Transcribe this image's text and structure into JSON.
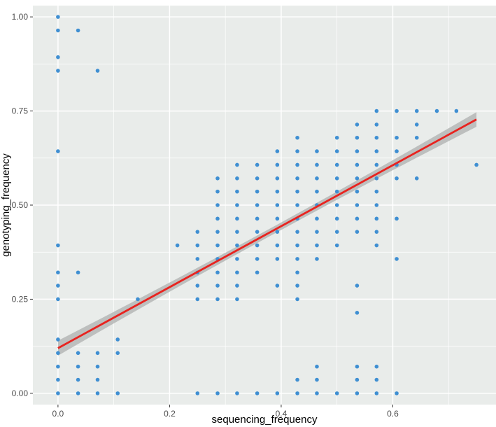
{
  "chart_data": {
    "type": "scatter",
    "xlabel": "sequencing_frequency",
    "ylabel": "genotyping_frequency",
    "xlim": [
      -0.045,
      0.785
    ],
    "ylim": [
      -0.03,
      1.03
    ],
    "xticks": [
      0.0,
      0.2,
      0.4,
      0.6
    ],
    "xtick_labels": [
      "0.0",
      "0.2",
      "0.4",
      "0.6"
    ],
    "yticks": [
      0.0,
      0.25,
      0.5,
      0.75,
      1.0
    ],
    "ytick_labels": [
      "0.00",
      "0.25",
      "0.50",
      "0.75",
      "1.00"
    ],
    "grid": true,
    "style": {
      "panel_background": "#e9ecea",
      "grid_color": "#ffffff",
      "point_color": "#3f8fd2",
      "line_color": "#e8231f",
      "band_color": "#b5b7b6"
    },
    "fit_line": {
      "method": "linear regression",
      "intercept": 0.12,
      "slope": 0.81,
      "x_range": [
        0.0,
        0.75
      ]
    },
    "points": [
      [
        0.0,
        1.0
      ],
      [
        0.0,
        0.964
      ],
      [
        0.0,
        0.893
      ],
      [
        0.0,
        0.857
      ],
      [
        0.0,
        0.643
      ],
      [
        0.0,
        0.393
      ],
      [
        0.0,
        0.321
      ],
      [
        0.0,
        0.286
      ],
      [
        0.0,
        0.25
      ],
      [
        0.0,
        0.143
      ],
      [
        0.0,
        0.107
      ],
      [
        0.0,
        0.071
      ],
      [
        0.0,
        0.036
      ],
      [
        0.0,
        0.0
      ],
      [
        0.036,
        0.964
      ],
      [
        0.036,
        0.321
      ],
      [
        0.036,
        0.107
      ],
      [
        0.036,
        0.071
      ],
      [
        0.036,
        0.036
      ],
      [
        0.036,
        0.0
      ],
      [
        0.071,
        0.857
      ],
      [
        0.071,
        0.107
      ],
      [
        0.071,
        0.071
      ],
      [
        0.071,
        0.036
      ],
      [
        0.071,
        0.0
      ],
      [
        0.107,
        0.143
      ],
      [
        0.107,
        0.107
      ],
      [
        0.107,
        0.0
      ],
      [
        0.143,
        0.25
      ],
      [
        0.214,
        0.393
      ],
      [
        0.25,
        0.429
      ],
      [
        0.25,
        0.393
      ],
      [
        0.25,
        0.357
      ],
      [
        0.25,
        0.321
      ],
      [
        0.25,
        0.286
      ],
      [
        0.25,
        0.25
      ],
      [
        0.25,
        0.0
      ],
      [
        0.286,
        0.571
      ],
      [
        0.286,
        0.536
      ],
      [
        0.286,
        0.5
      ],
      [
        0.286,
        0.464
      ],
      [
        0.286,
        0.429
      ],
      [
        0.286,
        0.393
      ],
      [
        0.286,
        0.357
      ],
      [
        0.286,
        0.321
      ],
      [
        0.286,
        0.286
      ],
      [
        0.286,
        0.25
      ],
      [
        0.286,
        0.0
      ],
      [
        0.321,
        0.607
      ],
      [
        0.321,
        0.571
      ],
      [
        0.321,
        0.536
      ],
      [
        0.321,
        0.5
      ],
      [
        0.321,
        0.464
      ],
      [
        0.321,
        0.429
      ],
      [
        0.321,
        0.393
      ],
      [
        0.321,
        0.357
      ],
      [
        0.321,
        0.321
      ],
      [
        0.321,
        0.286
      ],
      [
        0.321,
        0.25
      ],
      [
        0.321,
        0.0
      ],
      [
        0.357,
        0.607
      ],
      [
        0.357,
        0.571
      ],
      [
        0.357,
        0.536
      ],
      [
        0.357,
        0.5
      ],
      [
        0.357,
        0.464
      ],
      [
        0.357,
        0.429
      ],
      [
        0.357,
        0.393
      ],
      [
        0.357,
        0.357
      ],
      [
        0.357,
        0.321
      ],
      [
        0.357,
        0.0
      ],
      [
        0.393,
        0.643
      ],
      [
        0.393,
        0.607
      ],
      [
        0.393,
        0.571
      ],
      [
        0.393,
        0.536
      ],
      [
        0.393,
        0.5
      ],
      [
        0.393,
        0.464
      ],
      [
        0.393,
        0.429
      ],
      [
        0.393,
        0.393
      ],
      [
        0.393,
        0.357
      ],
      [
        0.393,
        0.286
      ],
      [
        0.393,
        0.0
      ],
      [
        0.429,
        0.679
      ],
      [
        0.429,
        0.643
      ],
      [
        0.429,
        0.607
      ],
      [
        0.429,
        0.571
      ],
      [
        0.429,
        0.536
      ],
      [
        0.429,
        0.5
      ],
      [
        0.429,
        0.464
      ],
      [
        0.429,
        0.429
      ],
      [
        0.429,
        0.393
      ],
      [
        0.429,
        0.357
      ],
      [
        0.429,
        0.321
      ],
      [
        0.429,
        0.286
      ],
      [
        0.429,
        0.25
      ],
      [
        0.429,
        0.036
      ],
      [
        0.429,
        0.0
      ],
      [
        0.464,
        0.643
      ],
      [
        0.464,
        0.607
      ],
      [
        0.464,
        0.571
      ],
      [
        0.464,
        0.536
      ],
      [
        0.464,
        0.5
      ],
      [
        0.464,
        0.464
      ],
      [
        0.464,
        0.429
      ],
      [
        0.464,
        0.393
      ],
      [
        0.464,
        0.357
      ],
      [
        0.464,
        0.071
      ],
      [
        0.464,
        0.036
      ],
      [
        0.464,
        0.0
      ],
      [
        0.5,
        0.679
      ],
      [
        0.5,
        0.643
      ],
      [
        0.5,
        0.607
      ],
      [
        0.5,
        0.571
      ],
      [
        0.5,
        0.536
      ],
      [
        0.5,
        0.5
      ],
      [
        0.5,
        0.464
      ],
      [
        0.5,
        0.429
      ],
      [
        0.5,
        0.393
      ],
      [
        0.5,
        0.0
      ],
      [
        0.536,
        0.714
      ],
      [
        0.536,
        0.679
      ],
      [
        0.536,
        0.643
      ],
      [
        0.536,
        0.607
      ],
      [
        0.536,
        0.571
      ],
      [
        0.536,
        0.536
      ],
      [
        0.536,
        0.5
      ],
      [
        0.536,
        0.464
      ],
      [
        0.536,
        0.429
      ],
      [
        0.536,
        0.286
      ],
      [
        0.536,
        0.214
      ],
      [
        0.536,
        0.071
      ],
      [
        0.536,
        0.036
      ],
      [
        0.536,
        0.0
      ],
      [
        0.571,
        0.75
      ],
      [
        0.571,
        0.714
      ],
      [
        0.571,
        0.679
      ],
      [
        0.571,
        0.643
      ],
      [
        0.571,
        0.607
      ],
      [
        0.571,
        0.571
      ],
      [
        0.571,
        0.536
      ],
      [
        0.571,
        0.5
      ],
      [
        0.571,
        0.464
      ],
      [
        0.571,
        0.429
      ],
      [
        0.571,
        0.393
      ],
      [
        0.571,
        0.071
      ],
      [
        0.571,
        0.036
      ],
      [
        0.571,
        0.0
      ],
      [
        0.607,
        0.75
      ],
      [
        0.607,
        0.679
      ],
      [
        0.607,
        0.643
      ],
      [
        0.607,
        0.607
      ],
      [
        0.607,
        0.571
      ],
      [
        0.607,
        0.464
      ],
      [
        0.607,
        0.357
      ],
      [
        0.607,
        0.0
      ],
      [
        0.643,
        0.75
      ],
      [
        0.643,
        0.714
      ],
      [
        0.643,
        0.679
      ],
      [
        0.643,
        0.571
      ],
      [
        0.679,
        0.75
      ],
      [
        0.714,
        0.75
      ],
      [
        0.75,
        0.607
      ]
    ]
  }
}
